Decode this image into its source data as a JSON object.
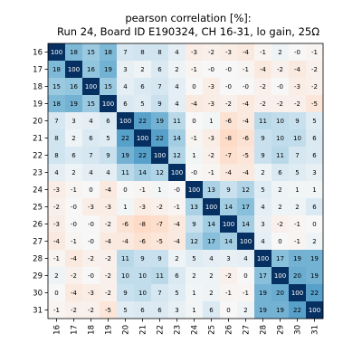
{
  "chart_data": {
    "type": "heatmap",
    "title": "pearson correlation [%]:",
    "subtitle": "Run 24, Board ID E190324, CH 16-31, lo gain, 25Ω",
    "xlabel": "",
    "ylabel": "",
    "x_categories": [
      "16",
      "17",
      "18",
      "19",
      "20",
      "21",
      "22",
      "23",
      "24",
      "25",
      "26",
      "27",
      "28",
      "29",
      "30",
      "31"
    ],
    "y_categories": [
      "16",
      "17",
      "18",
      "19",
      "20",
      "21",
      "22",
      "23",
      "24",
      "25",
      "26",
      "27",
      "28",
      "29",
      "30",
      "31"
    ],
    "value_range": [
      -100,
      100
    ],
    "colormap": "RdBu-diverging",
    "grid": false,
    "cell_labels": [
      [
        "100",
        "18",
        "15",
        "18",
        "7",
        "8",
        "8",
        "4",
        "-3",
        "-2",
        "-3",
        "-4",
        "-1",
        "2",
        "-0",
        "-1"
      ],
      [
        "18",
        "100",
        "16",
        "19",
        "3",
        "2",
        "6",
        "2",
        "-1",
        "-0",
        "-0",
        "-1",
        "-4",
        "-2",
        "-4",
        "-2"
      ],
      [
        "15",
        "16",
        "100",
        "15",
        "4",
        "6",
        "7",
        "4",
        "0",
        "-3",
        "-0",
        "-0",
        "-2",
        "-0",
        "-3",
        "-2"
      ],
      [
        "18",
        "19",
        "15",
        "100",
        "6",
        "5",
        "9",
        "4",
        "-4",
        "-3",
        "-2",
        "-4",
        "-2",
        "-2",
        "-2",
        "-5"
      ],
      [
        "7",
        "3",
        "4",
        "6",
        "100",
        "22",
        "19",
        "11",
        "0",
        "1",
        "-6",
        "-4",
        "11",
        "10",
        "9",
        "5"
      ],
      [
        "8",
        "2",
        "6",
        "5",
        "22",
        "100",
        "22",
        "14",
        "-1",
        "-3",
        "-8",
        "-6",
        "9",
        "10",
        "10",
        "6"
      ],
      [
        "8",
        "6",
        "7",
        "9",
        "19",
        "22",
        "100",
        "12",
        "1",
        "-2",
        "-7",
        "-5",
        "9",
        "11",
        "7",
        "6"
      ],
      [
        "4",
        "2",
        "4",
        "4",
        "11",
        "14",
        "12",
        "100",
        "-0",
        "-1",
        "-4",
        "-4",
        "2",
        "6",
        "5",
        "3"
      ],
      [
        "-3",
        "-1",
        "0",
        "-4",
        "0",
        "-1",
        "1",
        "-0",
        "100",
        "13",
        "9",
        "12",
        "5",
        "2",
        "1",
        "1"
      ],
      [
        "-2",
        "-0",
        "-3",
        "-3",
        "1",
        "-3",
        "-2",
        "-1",
        "13",
        "100",
        "14",
        "17",
        "4",
        "2",
        "2",
        "6"
      ],
      [
        "-3",
        "-0",
        "-0",
        "-2",
        "-6",
        "-8",
        "-7",
        "-4",
        "9",
        "14",
        "100",
        "14",
        "3",
        "-2",
        "-1",
        "0"
      ],
      [
        "-4",
        "-1",
        "-0",
        "-4",
        "-4",
        "-6",
        "-5",
        "-4",
        "12",
        "17",
        "14",
        "100",
        "4",
        "0",
        "-1",
        "2"
      ],
      [
        "-1",
        "-4",
        "-2",
        "-2",
        "11",
        "9",
        "9",
        "2",
        "5",
        "4",
        "3",
        "4",
        "100",
        "17",
        "19",
        "19"
      ],
      [
        "2",
        "-2",
        "-0",
        "-2",
        "10",
        "10",
        "11",
        "6",
        "2",
        "2",
        "-2",
        "0",
        "17",
        "100",
        "20",
        "19"
      ],
      [
        "0",
        "-4",
        "-3",
        "-2",
        "9",
        "10",
        "7",
        "5",
        "1",
        "2",
        "-1",
        "-1",
        "19",
        "20",
        "100",
        "22"
      ],
      [
        "-1",
        "-2",
        "-2",
        "-5",
        "5",
        "6",
        "6",
        "3",
        "1",
        "6",
        "0",
        "2",
        "19",
        "19",
        "22",
        "100"
      ]
    ]
  }
}
